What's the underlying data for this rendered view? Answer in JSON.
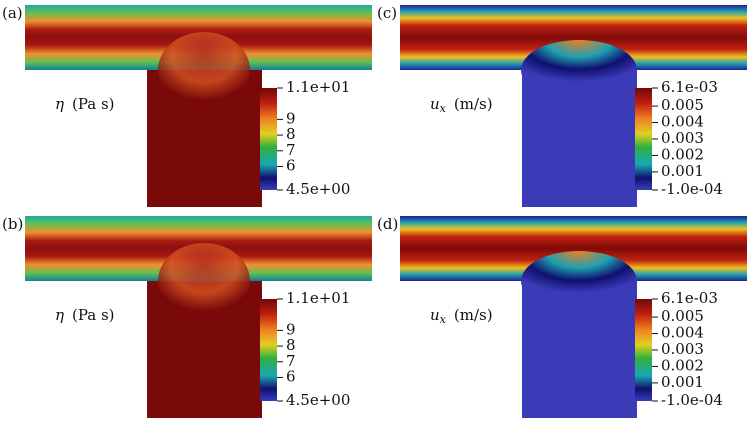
{
  "panels": [
    {
      "label": "(a)",
      "field": "viscosity",
      "colorbar": {
        "symbol": "η",
        "unit": "(Pa s)",
        "ticks": [
          {
            "value": 11,
            "label": "1.1e+01"
          },
          9,
          8,
          7,
          6,
          {
            "value": 4.5,
            "label": "4.5e+00"
          }
        ]
      }
    },
    {
      "label": "(c)",
      "field": "velocity",
      "colorbar": {
        "symbol": "u",
        "subscript": "x",
        "unit": "(m/s)",
        "ticks": [
          {
            "value": 0.0061,
            "label": "6.1e-03"
          },
          0.005,
          0.004,
          0.003,
          0.002,
          0.001,
          {
            "value": -0.0001,
            "label": "-1.0e-04"
          }
        ]
      }
    },
    {
      "label": "(b)",
      "field": "viscosity",
      "colorbar": {
        "symbol": "η",
        "unit": "(Pa s)",
        "ticks": [
          {
            "value": 11,
            "label": "1.1e+01"
          },
          9,
          8,
          7,
          6,
          {
            "value": 4.5,
            "label": "4.5e+00"
          }
        ]
      }
    },
    {
      "label": "(d)",
      "field": "velocity",
      "colorbar": {
        "symbol": "u",
        "subscript": "x",
        "unit": "(m/s)",
        "ticks": [
          {
            "value": 0.0061,
            "label": "6.1e-03"
          },
          0.005,
          0.004,
          0.003,
          0.002,
          0.001,
          {
            "value": -0.0001,
            "label": "-1.0e-04"
          }
        ]
      }
    }
  ]
}
